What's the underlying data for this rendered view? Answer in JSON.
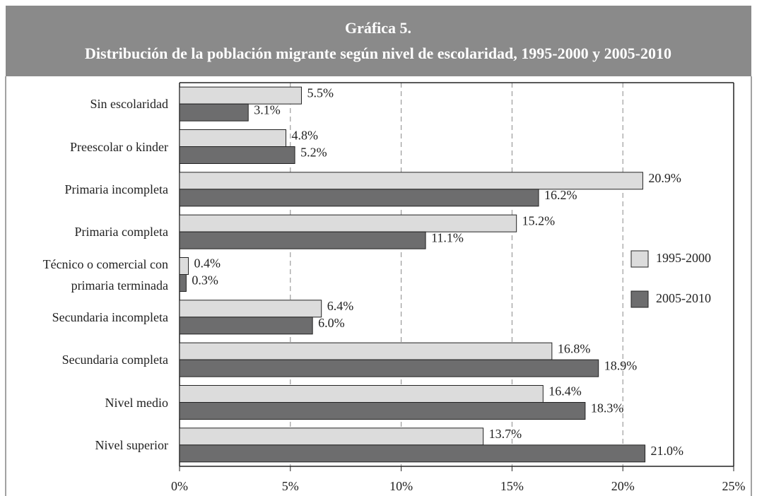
{
  "chart_data": {
    "type": "bar",
    "orientation": "horizontal",
    "title": "Gráfica 5.",
    "subtitle": "Distribución de la población migrante según nivel de escolaridad, 1995-2000 y 2005-2010",
    "categories": [
      "Sin escolaridad",
      "Preescolar o kinder",
      "Primaria incompleta",
      "Primaria completa",
      "Técnico o comercial con primaria terminada",
      "Secundaria incompleta",
      "Secundaria completa",
      "Nivel medio",
      "Nivel superior"
    ],
    "series": [
      {
        "name": "1995-2000",
        "color": "#dcdcdc",
        "values": [
          5.5,
          4.8,
          20.9,
          15.2,
          0.4,
          6.4,
          16.8,
          16.4,
          13.7
        ],
        "value_labels": [
          "5.5%",
          "4.8%",
          "20.9%",
          "15.2%",
          "0.4%",
          "6.4%",
          "16.8%",
          "16.4%",
          "13.7%"
        ]
      },
      {
        "name": "2005-2010",
        "color": "#6d6d6e",
        "values": [
          3.1,
          5.2,
          16.2,
          11.1,
          0.3,
          6.0,
          18.9,
          18.3,
          21.0
        ],
        "value_labels": [
          "3.1%",
          "5.2%",
          "16.2%",
          "11.1%",
          "0.3%",
          "6.0%",
          "18.9%",
          "18.3%",
          "21.0%"
        ]
      }
    ],
    "xlim": [
      0,
      25
    ],
    "xticks": [
      {
        "value": 0,
        "label": "0%"
      },
      {
        "value": 5,
        "label": "5%"
      },
      {
        "value": 10,
        "label": "10%"
      },
      {
        "value": 15,
        "label": "15%"
      },
      {
        "value": 20,
        "label": "20%"
      },
      {
        "value": 25,
        "label": "25%"
      }
    ],
    "grid": true,
    "legend": "right"
  }
}
